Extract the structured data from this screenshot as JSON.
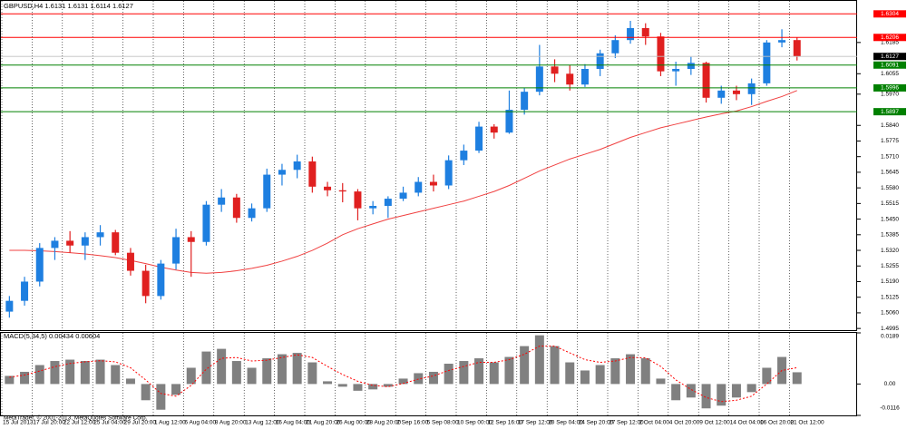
{
  "chart_data": [
    {
      "type": "candlestick",
      "title": "GBPUSD,H4  1.6131 1.6131 1.6114 1.6127",
      "categories": [
        "15 Jul 2013",
        null,
        "17 Jul 20:00",
        null,
        "22 Jul 12:00",
        null,
        "25 Jul 04:00",
        null,
        "29 Jul 20:00",
        null,
        "1 Aug 12:00",
        null,
        "6 Aug 04:00",
        null,
        "8 Aug 20:00",
        null,
        "13 Aug 12:00",
        null,
        "16 Aug 04:00",
        null,
        "21 Aug 20:00",
        null,
        "26 Aug 00:00",
        null,
        "28 Aug 20:00",
        null,
        "2 Sep 16:00",
        null,
        "5 Sep 08:00",
        null,
        "10 Sep 00:00",
        null,
        "12 Sep 16:00",
        null,
        "17 Sep 12:00",
        null,
        "20 Sep 04:00",
        null,
        "24 Sep 20:00",
        null,
        "27 Sep 12:00",
        null,
        "2 Oct 04:00",
        null,
        "4 Oct 20:00",
        null,
        "9 Oct 12:00",
        null,
        "14 Oct 04:00",
        null,
        "16 Oct 20:00",
        null,
        "21 Oct 12:00"
      ],
      "open": [
        1.5065,
        1.511,
        1.519,
        1.533,
        1.536,
        1.534,
        1.5375,
        1.5395,
        1.531,
        1.5235,
        1.513,
        1.5265,
        1.5375,
        1.5355,
        1.551,
        1.554,
        1.5455,
        1.5495,
        1.5635,
        1.5655,
        1.569,
        1.5585,
        1.557,
        1.5565,
        1.5495,
        1.5505,
        1.5535,
        1.556,
        1.5605,
        1.559,
        1.5695,
        1.5735,
        1.5835,
        1.581,
        1.5905,
        1.598,
        1.6085,
        1.6055,
        1.601,
        1.6075,
        1.614,
        1.6195,
        1.6245,
        1.621,
        1.6065,
        1.6075,
        1.61,
        1.5955,
        1.5985,
        1.597,
        1.6015,
        1.6185,
        1.6195
      ],
      "high": [
        1.513,
        1.521,
        1.535,
        1.5375,
        1.54,
        1.5395,
        1.5425,
        1.5405,
        1.533,
        1.526,
        1.528,
        1.541,
        1.54,
        1.5525,
        1.5575,
        1.5555,
        1.5515,
        1.566,
        1.568,
        1.5718,
        1.571,
        1.5605,
        1.56,
        1.5575,
        1.5525,
        1.5545,
        1.5585,
        1.5625,
        1.5635,
        1.5715,
        1.576,
        1.5855,
        1.5845,
        1.5985,
        1.5995,
        1.6175,
        1.6115,
        1.609,
        1.6095,
        1.6155,
        1.6215,
        1.6275,
        1.6265,
        1.6225,
        1.6105,
        1.6125,
        1.6105,
        1.6005,
        1.6005,
        1.6035,
        1.6195,
        1.624,
        1.6205
      ],
      "low": [
        1.504,
        1.509,
        1.517,
        1.528,
        1.531,
        1.528,
        1.534,
        1.53,
        1.5215,
        1.51,
        1.5115,
        1.524,
        1.521,
        1.534,
        1.548,
        1.5435,
        1.544,
        1.548,
        1.559,
        1.562,
        1.556,
        1.5545,
        1.552,
        1.5445,
        1.547,
        1.5455,
        1.5525,
        1.5545,
        1.5565,
        1.5575,
        1.5675,
        1.5725,
        1.5785,
        1.5805,
        1.5885,
        1.5965,
        1.602,
        1.5985,
        1.6,
        1.6045,
        1.612,
        1.618,
        1.6175,
        1.6045,
        1.6005,
        1.605,
        1.5935,
        1.593,
        1.5945,
        1.5925,
        1.6005,
        1.6165,
        1.611
      ],
      "close": [
        1.511,
        1.519,
        1.533,
        1.536,
        1.534,
        1.5375,
        1.5395,
        1.531,
        1.5235,
        1.513,
        1.5265,
        1.5375,
        1.5355,
        1.551,
        1.554,
        1.5455,
        1.5495,
        1.5635,
        1.5655,
        1.569,
        1.5585,
        1.557,
        1.5565,
        1.5495,
        1.5505,
        1.5535,
        1.556,
        1.5605,
        1.559,
        1.5695,
        1.5735,
        1.5835,
        1.581,
        1.5905,
        1.598,
        1.6085,
        1.6055,
        1.601,
        1.6075,
        1.614,
        1.6195,
        1.6245,
        1.621,
        1.6065,
        1.6075,
        1.61,
        1.5955,
        1.5985,
        1.597,
        1.6015,
        1.6185,
        1.6195,
        1.6127
      ],
      "up_color": "#1e7fe0",
      "down_color": "#e02020",
      "ma": {
        "color": "#f04040",
        "values": [
          1.532,
          1.532,
          1.5318,
          1.5315,
          1.531,
          1.5305,
          1.5298,
          1.529,
          1.5278,
          1.5265,
          1.525,
          1.5238,
          1.5228,
          1.5225,
          1.5228,
          1.5235,
          1.5245,
          1.5258,
          1.5275,
          1.5295,
          1.532,
          1.535,
          1.5385,
          1.541,
          1.543,
          1.545,
          1.5465,
          1.548,
          1.5495,
          1.551,
          1.5525,
          1.5545,
          1.5565,
          1.559,
          1.562,
          1.565,
          1.5675,
          1.57,
          1.572,
          1.574,
          1.5765,
          1.579,
          1.581,
          1.583,
          1.5845,
          1.586,
          1.5875,
          1.5888,
          1.59,
          1.5918,
          1.594,
          1.596,
          1.5985
        ]
      },
      "ylim": [
        1.4988,
        1.6358
      ],
      "yticks": [
        1.6185,
        1.6055,
        {
          "value": 1.597,
          "label": "1.5970"
        },
        {
          "value": 1.584,
          "label": "1.5840"
        },
        1.5775,
        {
          "value": 1.571,
          "label": "1.5710"
        },
        1.5645,
        {
          "value": 1.558,
          "label": "1.5580"
        },
        1.5515,
        {
          "value": 1.545,
          "label": "1.5450"
        },
        1.5385,
        {
          "value": 1.532,
          "label": "1.5320"
        },
        1.5255,
        {
          "value": 1.519,
          "label": "1.5190"
        },
        1.5125,
        {
          "value": 1.506,
          "label": "1.5060"
        },
        1.4995
      ],
      "levels": [
        {
          "value": 1.6304,
          "color": "#ff0000"
        },
        {
          "value": 1.6206,
          "color": "#ff0000"
        },
        {
          "value": 1.6091,
          "color": "#008000"
        },
        {
          "value": 1.5996,
          "color": "#008000"
        },
        {
          "value": 1.5897,
          "color": "#008000"
        }
      ],
      "current_price": 1.6127,
      "grid": true
    },
    {
      "type": "macd",
      "title": "MACD(5,34,5) 0.00434 0.00604",
      "footer": "MetaTrader, © 2001-2013, MetaQuotes Software Corp.",
      "color": "#808080",
      "values": [
        0.003,
        0.0045,
        0.007,
        0.0085,
        0.009,
        0.0085,
        0.009,
        0.007,
        0.002,
        -0.006,
        -0.0095,
        -0.004,
        0.006,
        0.012,
        0.013,
        0.0085,
        0.006,
        0.0095,
        0.011,
        0.0115,
        0.008,
        0.001,
        -0.001,
        -0.0025,
        -0.002,
        -0.001,
        0.002,
        0.004,
        0.0045,
        0.0075,
        0.0085,
        0.0095,
        0.008,
        0.01,
        0.014,
        0.018,
        0.014,
        0.008,
        0.005,
        0.007,
        0.0095,
        0.011,
        0.0095,
        0.002,
        -0.006,
        -0.005,
        -0.009,
        -0.008,
        -0.005,
        -0.003,
        0.006,
        0.01,
        0.00434
      ],
      "signal": {
        "color": "#ff0000",
        "values": [
          0.0025,
          0.0033,
          0.0048,
          0.0064,
          0.0076,
          0.0082,
          0.0086,
          0.0082,
          0.006,
          0.0015,
          -0.0035,
          -0.0045,
          -0.0005,
          0.0055,
          0.0095,
          0.0098,
          0.0085,
          0.0088,
          0.0098,
          0.0108,
          0.0098,
          0.0065,
          0.0035,
          0.001,
          -0.0005,
          -0.001,
          0.0002,
          0.0018,
          0.003,
          0.005,
          0.0065,
          0.008,
          0.008,
          0.009,
          0.011,
          0.014,
          0.014,
          0.0115,
          0.009,
          0.008,
          0.0085,
          0.0098,
          0.0097,
          0.0065,
          0.0015,
          -0.002,
          -0.005,
          -0.0065,
          -0.006,
          -0.0045,
          0.0,
          0.005,
          0.00604
        ]
      },
      "ylim": [
        -0.0116,
        0.0189
      ],
      "yticks": [
        0.0189,
        {
          "value": 0,
          "label": "0.00"
        },
        -0.0116
      ]
    }
  ]
}
